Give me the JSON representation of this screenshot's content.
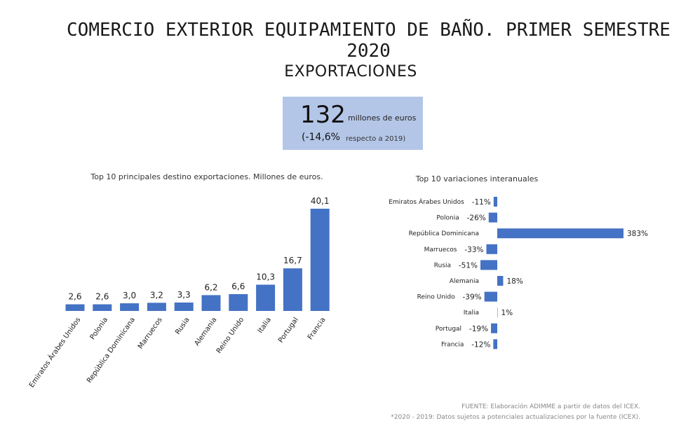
{
  "title": "COMERCIO EXTERIOR EQUIPAMIENTO DE BAÑO. PRIMER SEMESTRE 2020",
  "subtitle": "EXPORTACIONES",
  "kpi": {
    "value": "132",
    "unit": "millones de euros",
    "change": "(-14,6%",
    "change_note": "respecto a 2019)"
  },
  "colors": {
    "bar": "#4472c4",
    "kpi_background": "#b4c6e7"
  },
  "chart_data": [
    {
      "type": "bar",
      "title": "Top 10 principales destino exportaciones. Millones de euros.",
      "categories": [
        "Emiratos Árabes Unidos",
        "Polonia",
        "República Dominicana",
        "Marruecos",
        "Rusia",
        "Alemania",
        "Reino Unido",
        "Italia",
        "Portugal",
        "Francia"
      ],
      "values": [
        2.6,
        2.6,
        3.0,
        3.2,
        3.3,
        6.2,
        6.6,
        10.3,
        16.7,
        40.1
      ],
      "data_labels": [
        "2,6",
        "2,6",
        "3,0",
        "3,2",
        "3,3",
        "6,2",
        "6,6",
        "10,3",
        "16,7",
        "40,1"
      ],
      "xlabel": "",
      "ylabel": "",
      "ylim": [
        0,
        40.1
      ],
      "grid": false
    },
    {
      "type": "bar",
      "orientation": "horizontal",
      "title": "Top 10 variaciones interanuales",
      "categories": [
        "Emiratos Árabes Unidos",
        "Polonia",
        "República Dominicana",
        "Marruecos",
        "Rusia",
        "Alemania",
        "Reino Unido",
        "Italia",
        "Portugal",
        "Francia"
      ],
      "values": [
        -11,
        -26,
        383,
        -33,
        -51,
        18,
        -39,
        1,
        -19,
        -12
      ],
      "data_labels": [
        "-11%",
        "-26%",
        "383%",
        "-33%",
        "-51%",
        "18%",
        "-39%",
        "1%",
        "-19%",
        "-12%"
      ],
      "xlabel": "",
      "ylabel": "",
      "xlim": [
        -51,
        383
      ],
      "grid": false
    }
  ],
  "footer": {
    "source": "FUENTE: Elaboración ADIMME a partir de datos del ICEX.",
    "note": "*2020 - 2019: Datos sujetos a potenciales actualizaciones por la fuente (ICEX)."
  }
}
